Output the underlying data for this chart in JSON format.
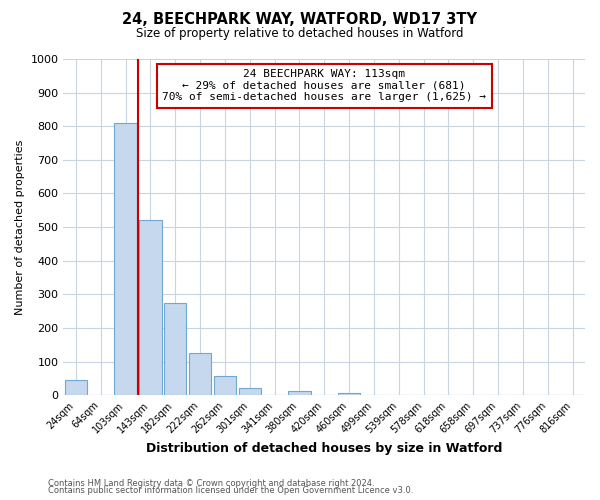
{
  "title1": "24, BEECHPARK WAY, WATFORD, WD17 3TY",
  "title2": "Size of property relative to detached houses in Watford",
  "xlabel": "Distribution of detached houses by size in Watford",
  "ylabel": "Number of detached properties",
  "bar_labels": [
    "24sqm",
    "64sqm",
    "103sqm",
    "143sqm",
    "182sqm",
    "222sqm",
    "262sqm",
    "301sqm",
    "341sqm",
    "380sqm",
    "420sqm",
    "460sqm",
    "499sqm",
    "539sqm",
    "578sqm",
    "618sqm",
    "658sqm",
    "697sqm",
    "737sqm",
    "776sqm",
    "816sqm"
  ],
  "bar_values": [
    46,
    0,
    810,
    520,
    275,
    125,
    57,
    22,
    0,
    12,
    0,
    8,
    0,
    0,
    0,
    0,
    0,
    0,
    0,
    0,
    0
  ],
  "bar_fill_color": "#c5d8ee",
  "bar_edge_color": "#6fa8d0",
  "vline_color": "#cc0000",
  "vline_x_index": 2,
  "ylim": [
    0,
    1000
  ],
  "yticks": [
    0,
    100,
    200,
    300,
    400,
    500,
    600,
    700,
    800,
    900,
    1000
  ],
  "annotation_title": "24 BEECHPARK WAY: 113sqm",
  "annotation_line1": "← 29% of detached houses are smaller (681)",
  "annotation_line2": "70% of semi-detached houses are larger (1,625) →",
  "footer1": "Contains HM Land Registry data © Crown copyright and database right 2024.",
  "footer2": "Contains public sector information licensed under the Open Government Licence v3.0.",
  "background_color": "#ffffff",
  "grid_color": "#c8d4e0"
}
